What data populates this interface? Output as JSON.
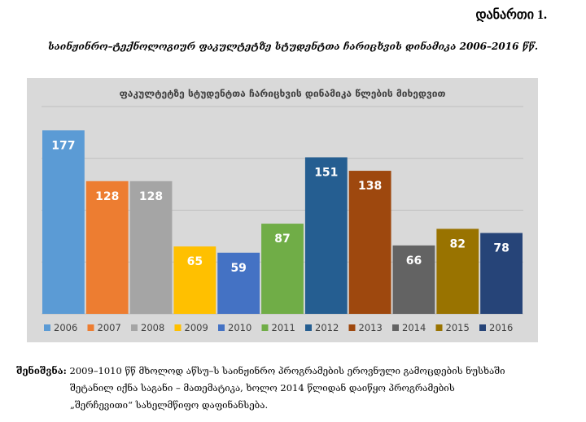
{
  "header": {
    "annex_label": "დანართი 1.",
    "document_title": "საინჟინრო–ტექნოლოგიურ ფაკულტეტზე სტუდენტთა ჩარიცხვის დინამიკა 2006–2016 წწ."
  },
  "note": {
    "label": "შენიშვნა:",
    "line1": "2009–1010 წწ მხოლოდ აწსუ–ს საინჟინრო პროგრამების ეროვნული გამოცდების ნუსხაში",
    "line2": "შეტანილ იქნა საგანი –  მათემატიკა, ხოლო 2014 წლიდან დაიწყო პროგრამების",
    "line3": "„შერჩევითი“ სახელმწიფო დაფინანსება."
  },
  "chart_data": {
    "type": "bar",
    "title": "ფაკულტეტზე სტუდენტთა ჩარიცხვის დინამიკა წლების მიხედვით",
    "categories": [
      "2006",
      "2007",
      "2008",
      "2009",
      "2010",
      "2011",
      "2012",
      "2013",
      "2014",
      "2015",
      "2016"
    ],
    "values": [
      177,
      128,
      128,
      65,
      59,
      87,
      151,
      138,
      66,
      82,
      78
    ],
    "colors": [
      "#5b9bd5",
      "#ed7d31",
      "#a5a5a5",
      "#ffc000",
      "#4472c4",
      "#70ad47",
      "#255e91",
      "#9e480e",
      "#636363",
      "#997300",
      "#264478"
    ],
    "ylim": [
      0,
      200
    ],
    "grid": true,
    "legend_position": "bottom",
    "data_labels": true
  }
}
